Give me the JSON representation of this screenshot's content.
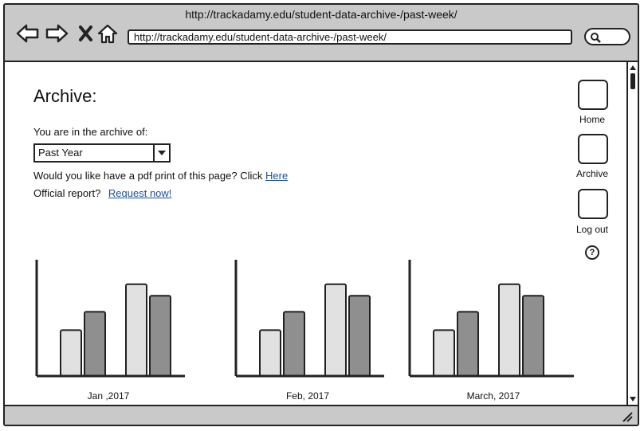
{
  "window": {
    "title": "http://trackadamy.edu/student-data-archive-/past-week/"
  },
  "browser": {
    "url": "http://trackadamy.edu/student-data-archive-/past-week/"
  },
  "page": {
    "heading": "Archive:",
    "archive_prompt": "You are in the archive of:",
    "period_select": {
      "value": "Past Year"
    },
    "pdf_text": "Would you like have a pdf print of this page? Click",
    "pdf_link": "Here",
    "report_text": "Official report?",
    "report_link": "Request now!"
  },
  "nav": {
    "items": [
      {
        "label": "Home"
      },
      {
        "label": "Archive"
      },
      {
        "label": "Log out"
      }
    ],
    "help_symbol": "?"
  },
  "chart_data": [
    {
      "type": "bar",
      "xlabel": "Jan ,2017",
      "ylim": [
        0,
        100
      ],
      "values": [
        40,
        56,
        80,
        70
      ],
      "colors": [
        "#e1e1e1",
        "#8f8f8f",
        "#e1e1e1",
        "#8f8f8f"
      ]
    },
    {
      "type": "bar",
      "xlabel": "Feb, 2017",
      "ylim": [
        0,
        100
      ],
      "values": [
        40,
        56,
        80,
        70
      ],
      "colors": [
        "#e1e1e1",
        "#8f8f8f",
        "#e1e1e1",
        "#8f8f8f"
      ]
    },
    {
      "type": "bar",
      "xlabel": "March, 2017",
      "ylim": [
        0,
        100
      ],
      "values": [
        40,
        56,
        80,
        70
      ],
      "colors": [
        "#e1e1e1",
        "#8f8f8f",
        "#e1e1e1",
        "#8f8f8f"
      ]
    }
  ]
}
